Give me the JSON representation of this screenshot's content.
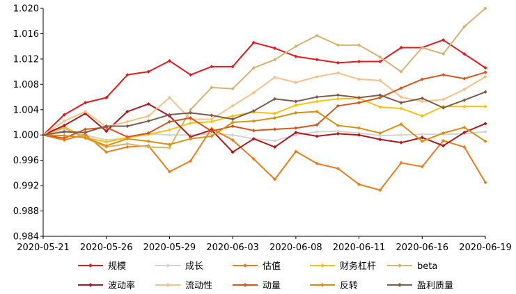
{
  "chart_data": {
    "type": "line",
    "title": "",
    "xlabel": "",
    "ylabel": "",
    "ylim": [
      0.984,
      1.02
    ],
    "y_ticks": [
      "1.020",
      "1.016",
      "1.012",
      "1.008",
      "1.004",
      "1.000",
      "0.996",
      "0.992",
      "0.988",
      "0.984"
    ],
    "x_tick_labels": [
      "2020-05-21",
      "2020-05-26",
      "2020-05-29",
      "2020-06-03",
      "2020-06-08",
      "2020-06-11",
      "2020-06-16",
      "2020-06-19"
    ],
    "x_tick_index": [
      0,
      3,
      6,
      9,
      12,
      15,
      18,
      21
    ],
    "x": [
      "2020-05-21",
      "2020-05-22",
      "2020-05-25",
      "2020-05-26",
      "2020-05-27",
      "2020-05-28",
      "2020-05-29",
      "2020-06-01",
      "2020-06-02",
      "2020-06-03",
      "2020-06-04",
      "2020-06-05",
      "2020-06-08",
      "2020-06-09",
      "2020-06-10",
      "2020-06-11",
      "2020-06-12",
      "2020-06-15",
      "2020-06-16",
      "2020-06-17",
      "2020-06-18",
      "2020-06-19"
    ],
    "grid": false,
    "legend_position": "bottom",
    "series": [
      {
        "name": "规模",
        "color": "#e8191c",
        "marker": "diamond",
        "values": [
          1.0,
          1.0032,
          1.0051,
          1.0059,
          1.0095,
          1.01,
          1.0117,
          1.0095,
          1.0108,
          1.0108,
          1.0146,
          1.0137,
          1.0124,
          1.0119,
          1.0114,
          1.0116,
          1.0116,
          1.0138,
          1.0138,
          1.015,
          1.0128,
          1.0106
        ]
      },
      {
        "name": "成长",
        "color": "#d3d3d3",
        "marker": "diamond",
        "values": [
          1.0,
          1.0007,
          1.0,
          0.9992,
          0.9995,
          1.0002,
          1.0,
          1.0,
          1.0002,
          1.0,
          0.9994,
          0.9991,
          1.0,
          1.0005,
          1.0006,
          1.0003,
          0.9999,
          1.0,
          1.0001,
          1.0001,
          1.0002,
          1.0005
        ]
      },
      {
        "name": "估值",
        "color": "#f07b1a",
        "marker": "diamond",
        "values": [
          1.0,
          0.9992,
          1.0001,
          0.9973,
          0.9981,
          0.9983,
          0.9942,
          0.9959,
          1.001,
          0.9992,
          0.9962,
          0.993,
          0.9974,
          0.9955,
          0.9947,
          0.9922,
          0.9913,
          0.9956,
          0.995,
          0.9991,
          0.9981,
          0.9925
        ]
      },
      {
        "name": "财务杠杆",
        "color": "#fbc10e",
        "marker": "diamond",
        "values": [
          1.0,
          1.0013,
          0.9996,
          0.9989,
          0.9996,
          1.0001,
          1.0008,
          1.0019,
          1.0021,
          1.003,
          1.0036,
          1.0034,
          1.0047,
          1.0053,
          1.0057,
          1.0058,
          1.0044,
          1.0042,
          1.003,
          1.0045,
          1.0045,
          1.0045
        ]
      },
      {
        "name": "beta",
        "color": "#d6b36e",
        "marker": "diamond",
        "values": [
          1.0,
          1.0011,
          0.9995,
          0.9981,
          0.9986,
          0.9981,
          0.998,
          1.004,
          1.0075,
          1.0073,
          1.0106,
          1.0119,
          1.014,
          1.0157,
          1.0142,
          1.0142,
          1.0123,
          1.01,
          1.0138,
          1.0128,
          1.0171,
          1.02
        ]
      },
      {
        "name": "波动率",
        "color": "#b0161c",
        "marker": "diamond",
        "values": [
          1.0,
          1.0015,
          1.0034,
          1.0006,
          1.0037,
          1.0049,
          1.003,
          0.9997,
          1.0008,
          0.9973,
          0.9994,
          0.9981,
          1.0004,
          0.9998,
          1.0002,
          1.0,
          0.9993,
          0.9988,
          0.9996,
          0.9983,
          1.0004,
          1.0018
        ]
      },
      {
        "name": "流动性",
        "color": "#f7c089",
        "marker": "diamond",
        "values": [
          1.0,
          1.0022,
          1.0037,
          1.0013,
          1.0021,
          1.003,
          1.0059,
          1.0025,
          1.0025,
          1.0046,
          1.0067,
          1.0091,
          1.0083,
          1.0092,
          1.0098,
          1.0088,
          1.0086,
          1.006,
          1.0053,
          1.0056,
          1.0072,
          1.0092
        ]
      },
      {
        "name": "动量",
        "color": "#d6561e",
        "marker": "diamond",
        "values": [
          1.0,
          0.9995,
          1.0009,
          1.0012,
          0.9997,
          1.0003,
          1.0021,
          1.0027,
          1.0006,
          1.0014,
          1.0007,
          1.0009,
          1.0011,
          1.0016,
          1.0046,
          1.0051,
          1.0059,
          1.0074,
          1.0088,
          1.0095,
          1.0089,
          1.0099
        ]
      },
      {
        "name": "反转",
        "color": "#d98f0e",
        "marker": "diamond",
        "values": [
          1.0,
          0.9999,
          0.9996,
          0.9983,
          0.9994,
          0.999,
          0.9985,
          0.9994,
          0.9998,
          1.002,
          1.0022,
          1.0027,
          1.0035,
          1.0037,
          1.0015,
          1.0011,
          1.0003,
          1.0017,
          0.999,
          1.0003,
          1.0012,
          0.999
        ]
      },
      {
        "name": "盈利质量",
        "color": "#7b5c4c",
        "marker": "diamond",
        "values": [
          1.0,
          1.0005,
          1.0004,
          1.0014,
          1.0014,
          1.0022,
          1.0032,
          1.0035,
          1.0031,
          1.0025,
          1.0038,
          1.0057,
          1.0053,
          1.006,
          1.0063,
          1.0059,
          1.0063,
          1.0051,
          1.0058,
          1.0043,
          1.0055,
          1.0068
        ]
      }
    ]
  }
}
